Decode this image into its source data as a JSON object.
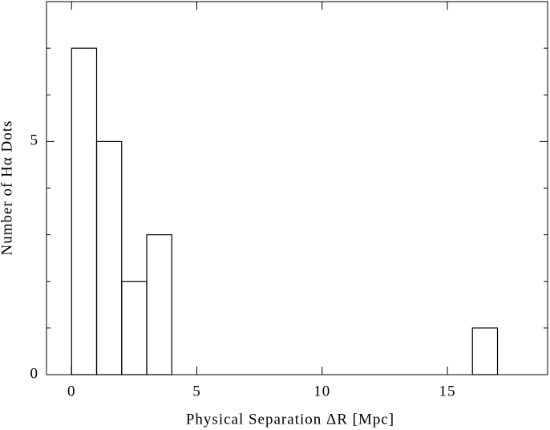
{
  "chart_data": {
    "type": "histogram",
    "x_label": "Physical Separation ΔR [Mpc]",
    "y_label": "Number of Hα Dots",
    "bins": [
      0,
      1,
      2,
      3,
      4,
      5,
      6,
      7,
      8,
      9,
      10,
      11,
      12,
      13,
      14,
      15,
      16,
      17
    ],
    "values": [
      7,
      5,
      2,
      3,
      0,
      0,
      0,
      0,
      0,
      0,
      0,
      0,
      0,
      0,
      0,
      0,
      1
    ],
    "color": "#000000",
    "xlim": [
      -1,
      19
    ],
    "xticks": [
      0,
      5,
      10,
      15
    ],
    "ylim": [
      0,
      8
    ],
    "yticks": [
      0,
      5
    ],
    "yminor_ticks": [
      1,
      2,
      3,
      4,
      6,
      7
    ]
  }
}
